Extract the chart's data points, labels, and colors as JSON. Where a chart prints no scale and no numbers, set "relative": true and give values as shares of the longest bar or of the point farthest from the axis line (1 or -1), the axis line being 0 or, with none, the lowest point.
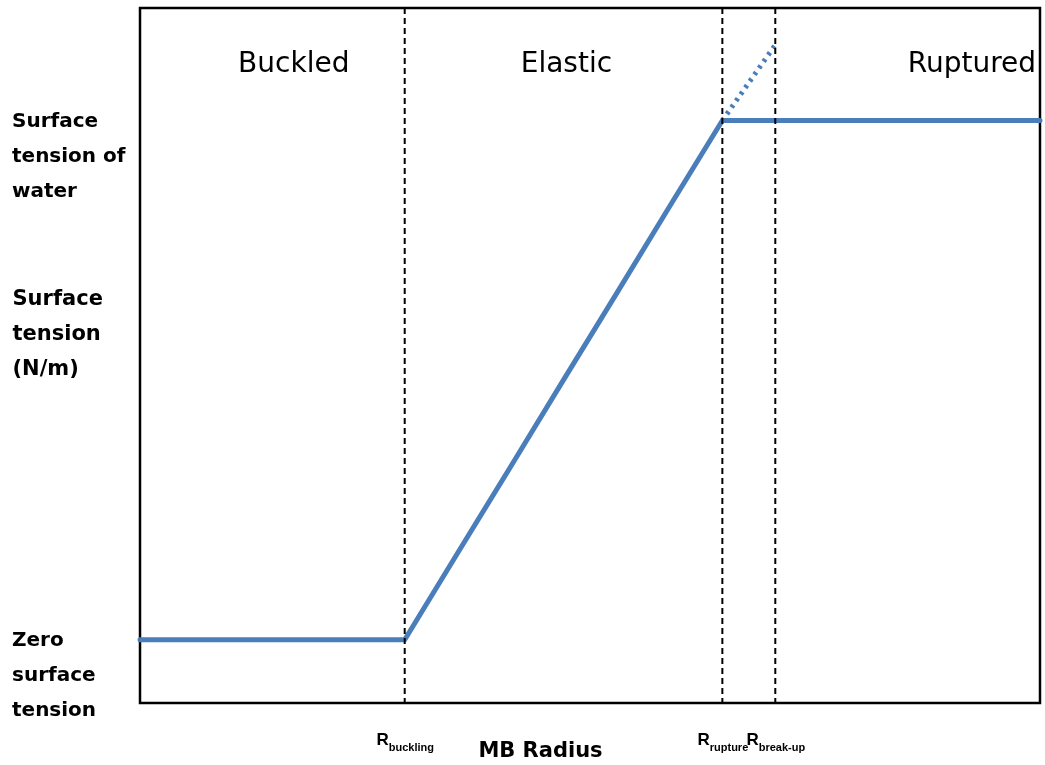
{
  "chart_data": {
    "type": "line",
    "relative": true,
    "xlabel": "MB Radius",
    "ylabel": "Surface tension (N/m)",
    "categories": [
      null,
      null,
      null,
      null,
      null,
      "R$_{buckling}$",
      null,
      null,
      null,
      null,
      null,
      "R$_{rupture}$",
      "R$_{break-up}$",
      null,
      null,
      null,
      null,
      null
    ],
    "series": [
      {
        "type": "line",
        "color": "#4a7ebb",
        "line_style": "solid",
        "values": [
          0.096,
          0.096,
          0.096,
          0.096,
          0.096,
          0.096,
          0.228,
          0.359,
          0.491,
          0.622,
          0.754,
          0.885,
          0.885,
          0.885,
          0.885,
          0.885,
          0.885,
          0.885
        ]
      },
      {
        "type": "line",
        "color": "#4a7ebb",
        "line_style": "dotted",
        "values": [
          null,
          null,
          null,
          null,
          null,
          null,
          null,
          null,
          null,
          null,
          null,
          0.885,
          1,
          null,
          null,
          null,
          null,
          null
        ]
      }
    ],
    "ref_lines": [
      {
        "axis": "x",
        "value": "R$_{buckling}$",
        "color": "#000000",
        "line_style": "dashed"
      },
      {
        "axis": "x",
        "value": "R$_{rupture}$",
        "color": "#000000",
        "line_style": "dashed"
      },
      {
        "axis": "x",
        "value": "R$_{break-up}$",
        "color": "#000000",
        "line_style": "dashed"
      }
    ],
    "annotations": [
      "Buckled",
      "Elastic",
      "Ruptured",
      "Surface tension of water",
      "Zero surface tension"
    ]
  }
}
